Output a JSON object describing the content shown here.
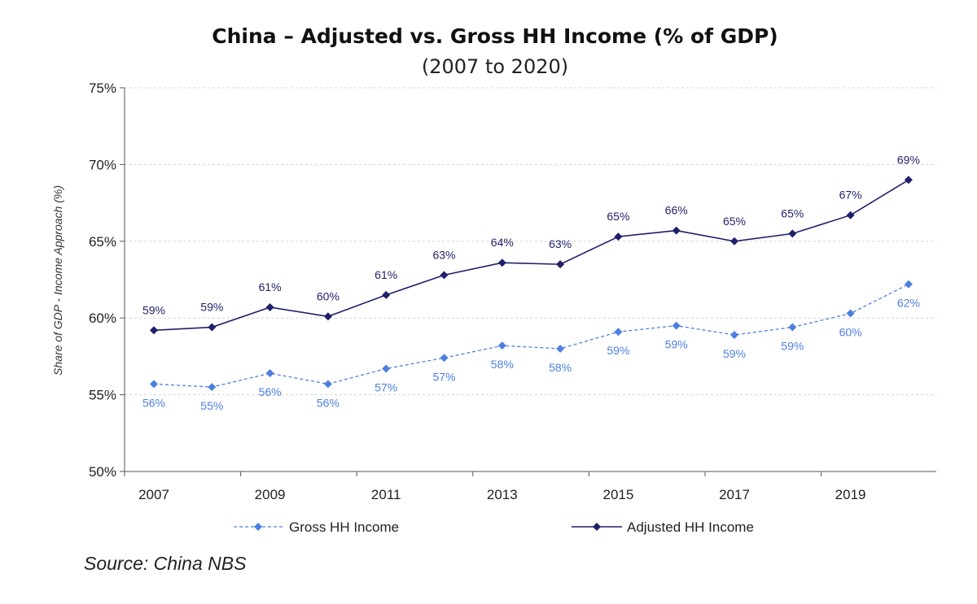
{
  "title": "China – Adjusted vs. Gross HH Income (% of GDP)",
  "subtitle": "(2007 to 2020)",
  "source": "Source: China NBS",
  "chart_data": {
    "type": "line",
    "title": "China – Adjusted vs. Gross HH Income (% of GDP)",
    "subtitle": "(2007 to 2020)",
    "xlabel": "",
    "ylabel": "Share of GDP - Income Approach (%)",
    "x": [
      2007,
      2008,
      2009,
      2010,
      2011,
      2012,
      2013,
      2014,
      2015,
      2016,
      2017,
      2018,
      2019,
      2020
    ],
    "x_tick_labels": [
      "2007",
      "2009",
      "2011",
      "2013",
      "2015",
      "2017",
      "2019"
    ],
    "y_tick_labels": [
      "50%",
      "55%",
      "60%",
      "65%",
      "70%",
      "75%"
    ],
    "y_ticks": [
      50,
      55,
      60,
      65,
      70,
      75
    ],
    "ylim": [
      50,
      75
    ],
    "xlim": [
      2007,
      2021
    ],
    "grid": "horizontal dashed",
    "legend_position": "bottom",
    "series": [
      {
        "name": "Gross HH Income",
        "color": "#4d7fe0",
        "line_style": "dashed",
        "marker": "diamond",
        "values": [
          55.7,
          55.5,
          56.4,
          55.7,
          56.7,
          57.4,
          58.2,
          58.0,
          59.1,
          59.5,
          58.9,
          59.4,
          60.3,
          62.2
        ],
        "data_labels": [
          "56%",
          "55%",
          "56%",
          "56%",
          "57%",
          "57%",
          "58%",
          "58%",
          "59%",
          "59%",
          "59%",
          "59%",
          "60%",
          "62%"
        ]
      },
      {
        "name": "Adjusted HH Income",
        "color": "#1f1f6b",
        "line_style": "solid",
        "marker": "diamond",
        "values": [
          59.2,
          59.4,
          60.7,
          60.1,
          61.5,
          62.8,
          63.6,
          63.5,
          65.3,
          65.7,
          65.0,
          65.5,
          66.7,
          69.0
        ],
        "data_labels": [
          "59%",
          "59%",
          "61%",
          "60%",
          "61%",
          "63%",
          "64%",
          "63%",
          "65%",
          "66%",
          "65%",
          "65%",
          "67%",
          "69%"
        ]
      }
    ]
  }
}
